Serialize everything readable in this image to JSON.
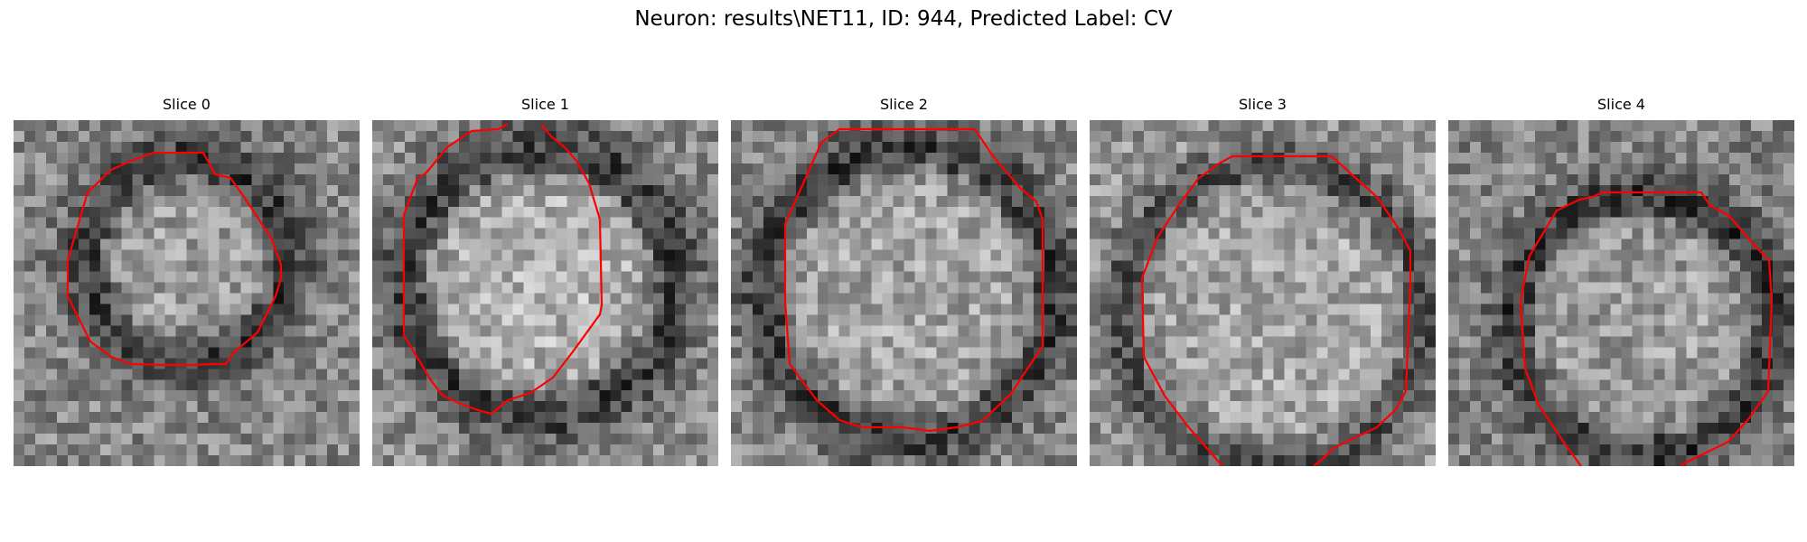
{
  "figure": {
    "title": "Neuron: results\\NET11, ID: 944, Predicted Label: CV"
  },
  "panels": [
    {
      "title": "Slice 0"
    },
    {
      "title": "Slice 1"
    },
    {
      "title": "Slice 2"
    },
    {
      "title": "Slice 3"
    },
    {
      "title": "Slice 4"
    }
  ],
  "colors": {
    "contour": "#ff0000",
    "background": "#ffffff"
  }
}
